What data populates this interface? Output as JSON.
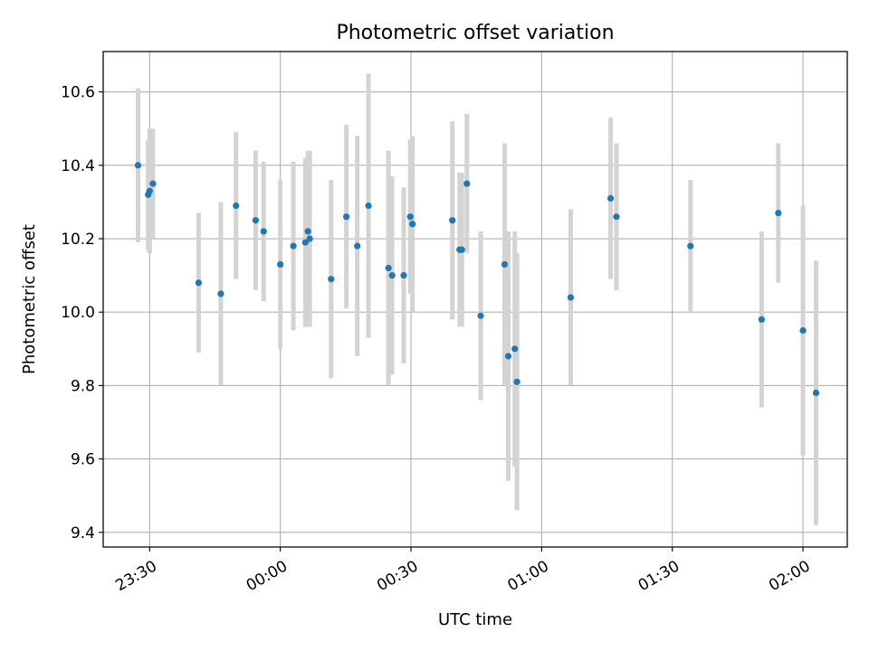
{
  "chart_data": {
    "type": "scatter",
    "title": "Photometric offset variation",
    "xlabel": "UTC time",
    "ylabel": "Photometric offset",
    "xlim": [
      "23:19:20",
      "02:10:10"
    ],
    "ylim": [
      9.36,
      10.71
    ],
    "x_ticks": [
      "23:30",
      "00:00",
      "00:30",
      "01:00",
      "01:30",
      "02:00"
    ],
    "y_ticks": [
      "9.4",
      "9.6",
      "9.8",
      "10.0",
      "10.2",
      "10.4",
      "10.6"
    ],
    "grid": true,
    "colors": {
      "point": "#1f77b4",
      "errorbar": "#d3d3d3",
      "grid": "#b0b0b0"
    },
    "points": [
      {
        "t": "23:27:20",
        "y": 10.4,
        "err": 0.21
      },
      {
        "t": "23:29:40",
        "y": 10.32,
        "err": 0.15
      },
      {
        "t": "23:30:00",
        "y": 10.33,
        "err": 0.17
      },
      {
        "t": "23:30:45",
        "y": 10.35,
        "err": 0.15
      },
      {
        "t": "23:41:15",
        "y": 10.08,
        "err": 0.19
      },
      {
        "t": "23:46:20",
        "y": 10.05,
        "err": 0.25
      },
      {
        "t": "23:49:50",
        "y": 10.29,
        "err": 0.2
      },
      {
        "t": "23:54:20",
        "y": 10.25,
        "err": 0.19
      },
      {
        "t": "23:56:10",
        "y": 10.22,
        "err": 0.19
      },
      {
        "t": "00:00:00",
        "y": 10.13,
        "err": 0.23
      },
      {
        "t": "00:03:00",
        "y": 10.18,
        "err": 0.23
      },
      {
        "t": "00:05:45",
        "y": 10.19,
        "err": 0.23
      },
      {
        "t": "00:06:20",
        "y": 10.22,
        "err": 0.22
      },
      {
        "t": "00:06:45",
        "y": 10.2,
        "err": 0.24
      },
      {
        "t": "00:11:40",
        "y": 10.09,
        "err": 0.27
      },
      {
        "t": "00:15:10",
        "y": 10.26,
        "err": 0.25
      },
      {
        "t": "00:17:40",
        "y": 10.18,
        "err": 0.3
      },
      {
        "t": "00:20:15",
        "y": 10.29,
        "err": 0.36
      },
      {
        "t": "00:24:50",
        "y": 10.12,
        "err": 0.32
      },
      {
        "t": "00:25:40",
        "y": 10.1,
        "err": 0.27
      },
      {
        "t": "00:28:20",
        "y": 10.1,
        "err": 0.24
      },
      {
        "t": "00:29:50",
        "y": 10.26,
        "err": 0.21
      },
      {
        "t": "00:30:20",
        "y": 10.24,
        "err": 0.24
      },
      {
        "t": "00:39:30",
        "y": 10.25,
        "err": 0.27
      },
      {
        "t": "00:41:10",
        "y": 10.17,
        "err": 0.21
      },
      {
        "t": "00:41:40",
        "y": 10.17,
        "err": 0.21
      },
      {
        "t": "00:42:50",
        "y": 10.35,
        "err": 0.19
      },
      {
        "t": "00:46:00",
        "y": 9.99,
        "err": 0.23
      },
      {
        "t": "00:51:30",
        "y": 10.13,
        "err": 0.33
      },
      {
        "t": "00:52:20",
        "y": 9.88,
        "err": 0.34
      },
      {
        "t": "00:53:50",
        "y": 9.9,
        "err": 0.32
      },
      {
        "t": "00:54:20",
        "y": 9.81,
        "err": 0.35
      },
      {
        "t": "01:06:40",
        "y": 10.04,
        "err": 0.24
      },
      {
        "t": "01:15:50",
        "y": 10.31,
        "err": 0.22
      },
      {
        "t": "01:17:10",
        "y": 10.26,
        "err": 0.2
      },
      {
        "t": "01:34:10",
        "y": 10.18,
        "err": 0.18
      },
      {
        "t": "01:50:30",
        "y": 9.98,
        "err": 0.24
      },
      {
        "t": "01:54:20",
        "y": 10.27,
        "err": 0.19
      },
      {
        "t": "02:00:00",
        "y": 9.95,
        "err": 0.34
      },
      {
        "t": "02:03:00",
        "y": 9.78,
        "err": 0.36
      }
    ]
  }
}
